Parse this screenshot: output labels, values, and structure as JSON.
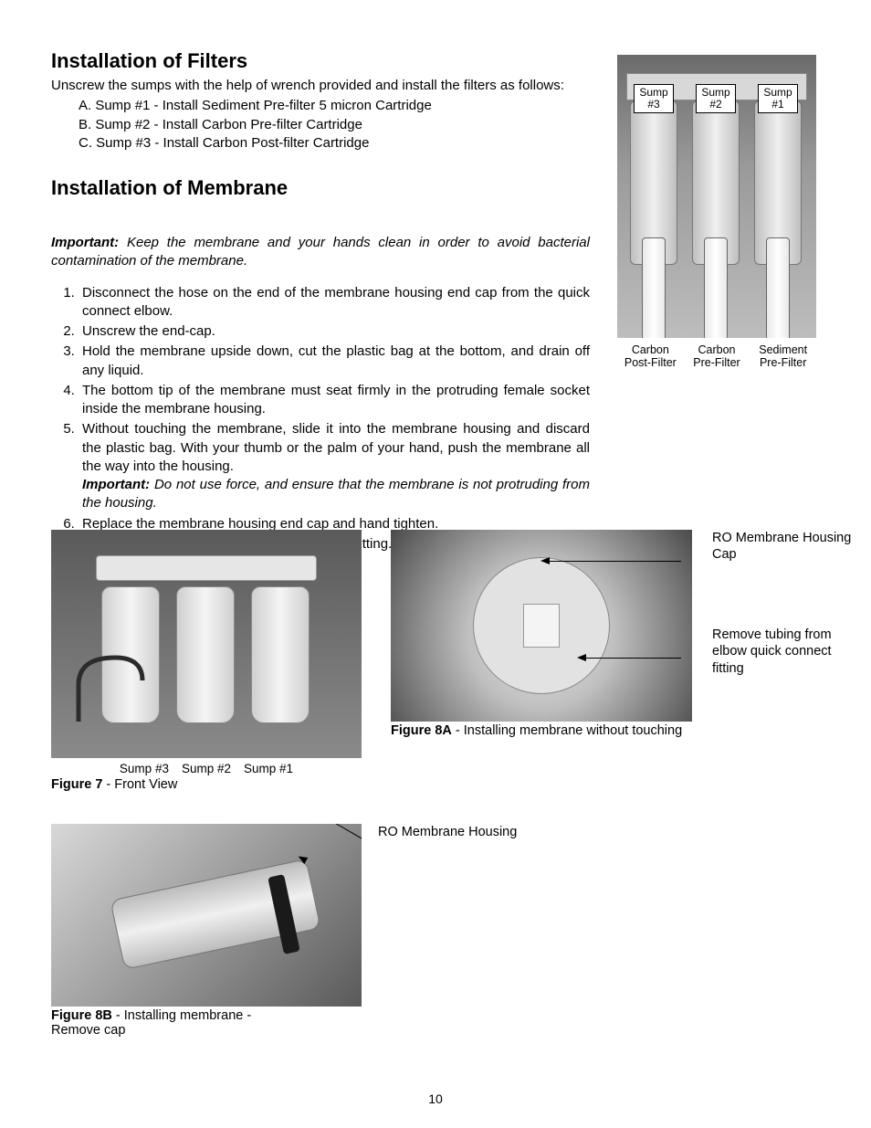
{
  "section1": {
    "title": "Installation of Filters",
    "intro": "Unscrew the sumps with the help of wrench provided and install the filters as follows:",
    "items": [
      "A. Sump #1 - Install Sediment Pre-filter 5 micron Cartridge",
      "B. Sump #2 - Install Carbon Pre-filter Cartridge",
      "C. Sump #3 - Install Carbon Post-filter Cartridge"
    ]
  },
  "section2": {
    "title": "Installation of Membrane",
    "important_label": "Important:",
    "important_text": " Keep the membrane and your hands clean in order to avoid bacterial contamination of the membrane.",
    "steps": [
      "Disconnect the hose on the end of the membrane housing end cap from the quick connect elbow.",
      "Unscrew the end-cap.",
      "Hold the membrane upside down, cut the plastic bag at the bottom, and drain off any liquid.",
      "The bottom tip of the membrane must seat firmly in the protruding female socket inside the membrane housing.",
      "Without touching the membrane, slide it into the membrane housing and discard the plastic bag. With your thumb or the palm of your hand, push the membrane all the way into the housing.",
      "Replace the membrane housing end cap and hand tighten.",
      "Push the tubing back into the quick connect fitting. Ensure the tubing is all the way in."
    ],
    "step5_important_label": "Important:",
    "step5_important_text": " Do not use force, and ensure that the membrane is not protruding from the housing."
  },
  "fig_top": {
    "sump_labels": [
      "Sump\n#3",
      "Sump\n#2",
      "Sump\n#1"
    ],
    "captions": [
      "Carbon\nPost-Filter",
      "Carbon\nPre-Filter",
      "Sediment\nPre-Filter"
    ]
  },
  "fig7": {
    "labels": [
      "Sump #3",
      "Sump #2",
      "Sump #1"
    ],
    "caption_bold": "Figure 7",
    "caption_rest": " - Front View"
  },
  "fig8a": {
    "caption_bold": "Figure 8A",
    "caption_rest": " - Installing membrane without touching",
    "callout1": "RO Membrane Housing Cap",
    "callout2": "Remove tubing from elbow quick connect fitting"
  },
  "fig8b": {
    "caption_bold": "Figure 8B",
    "caption_rest": " - Installing membrane  - Remove cap",
    "callout": "RO Membrane Housing"
  },
  "page_number": "10"
}
